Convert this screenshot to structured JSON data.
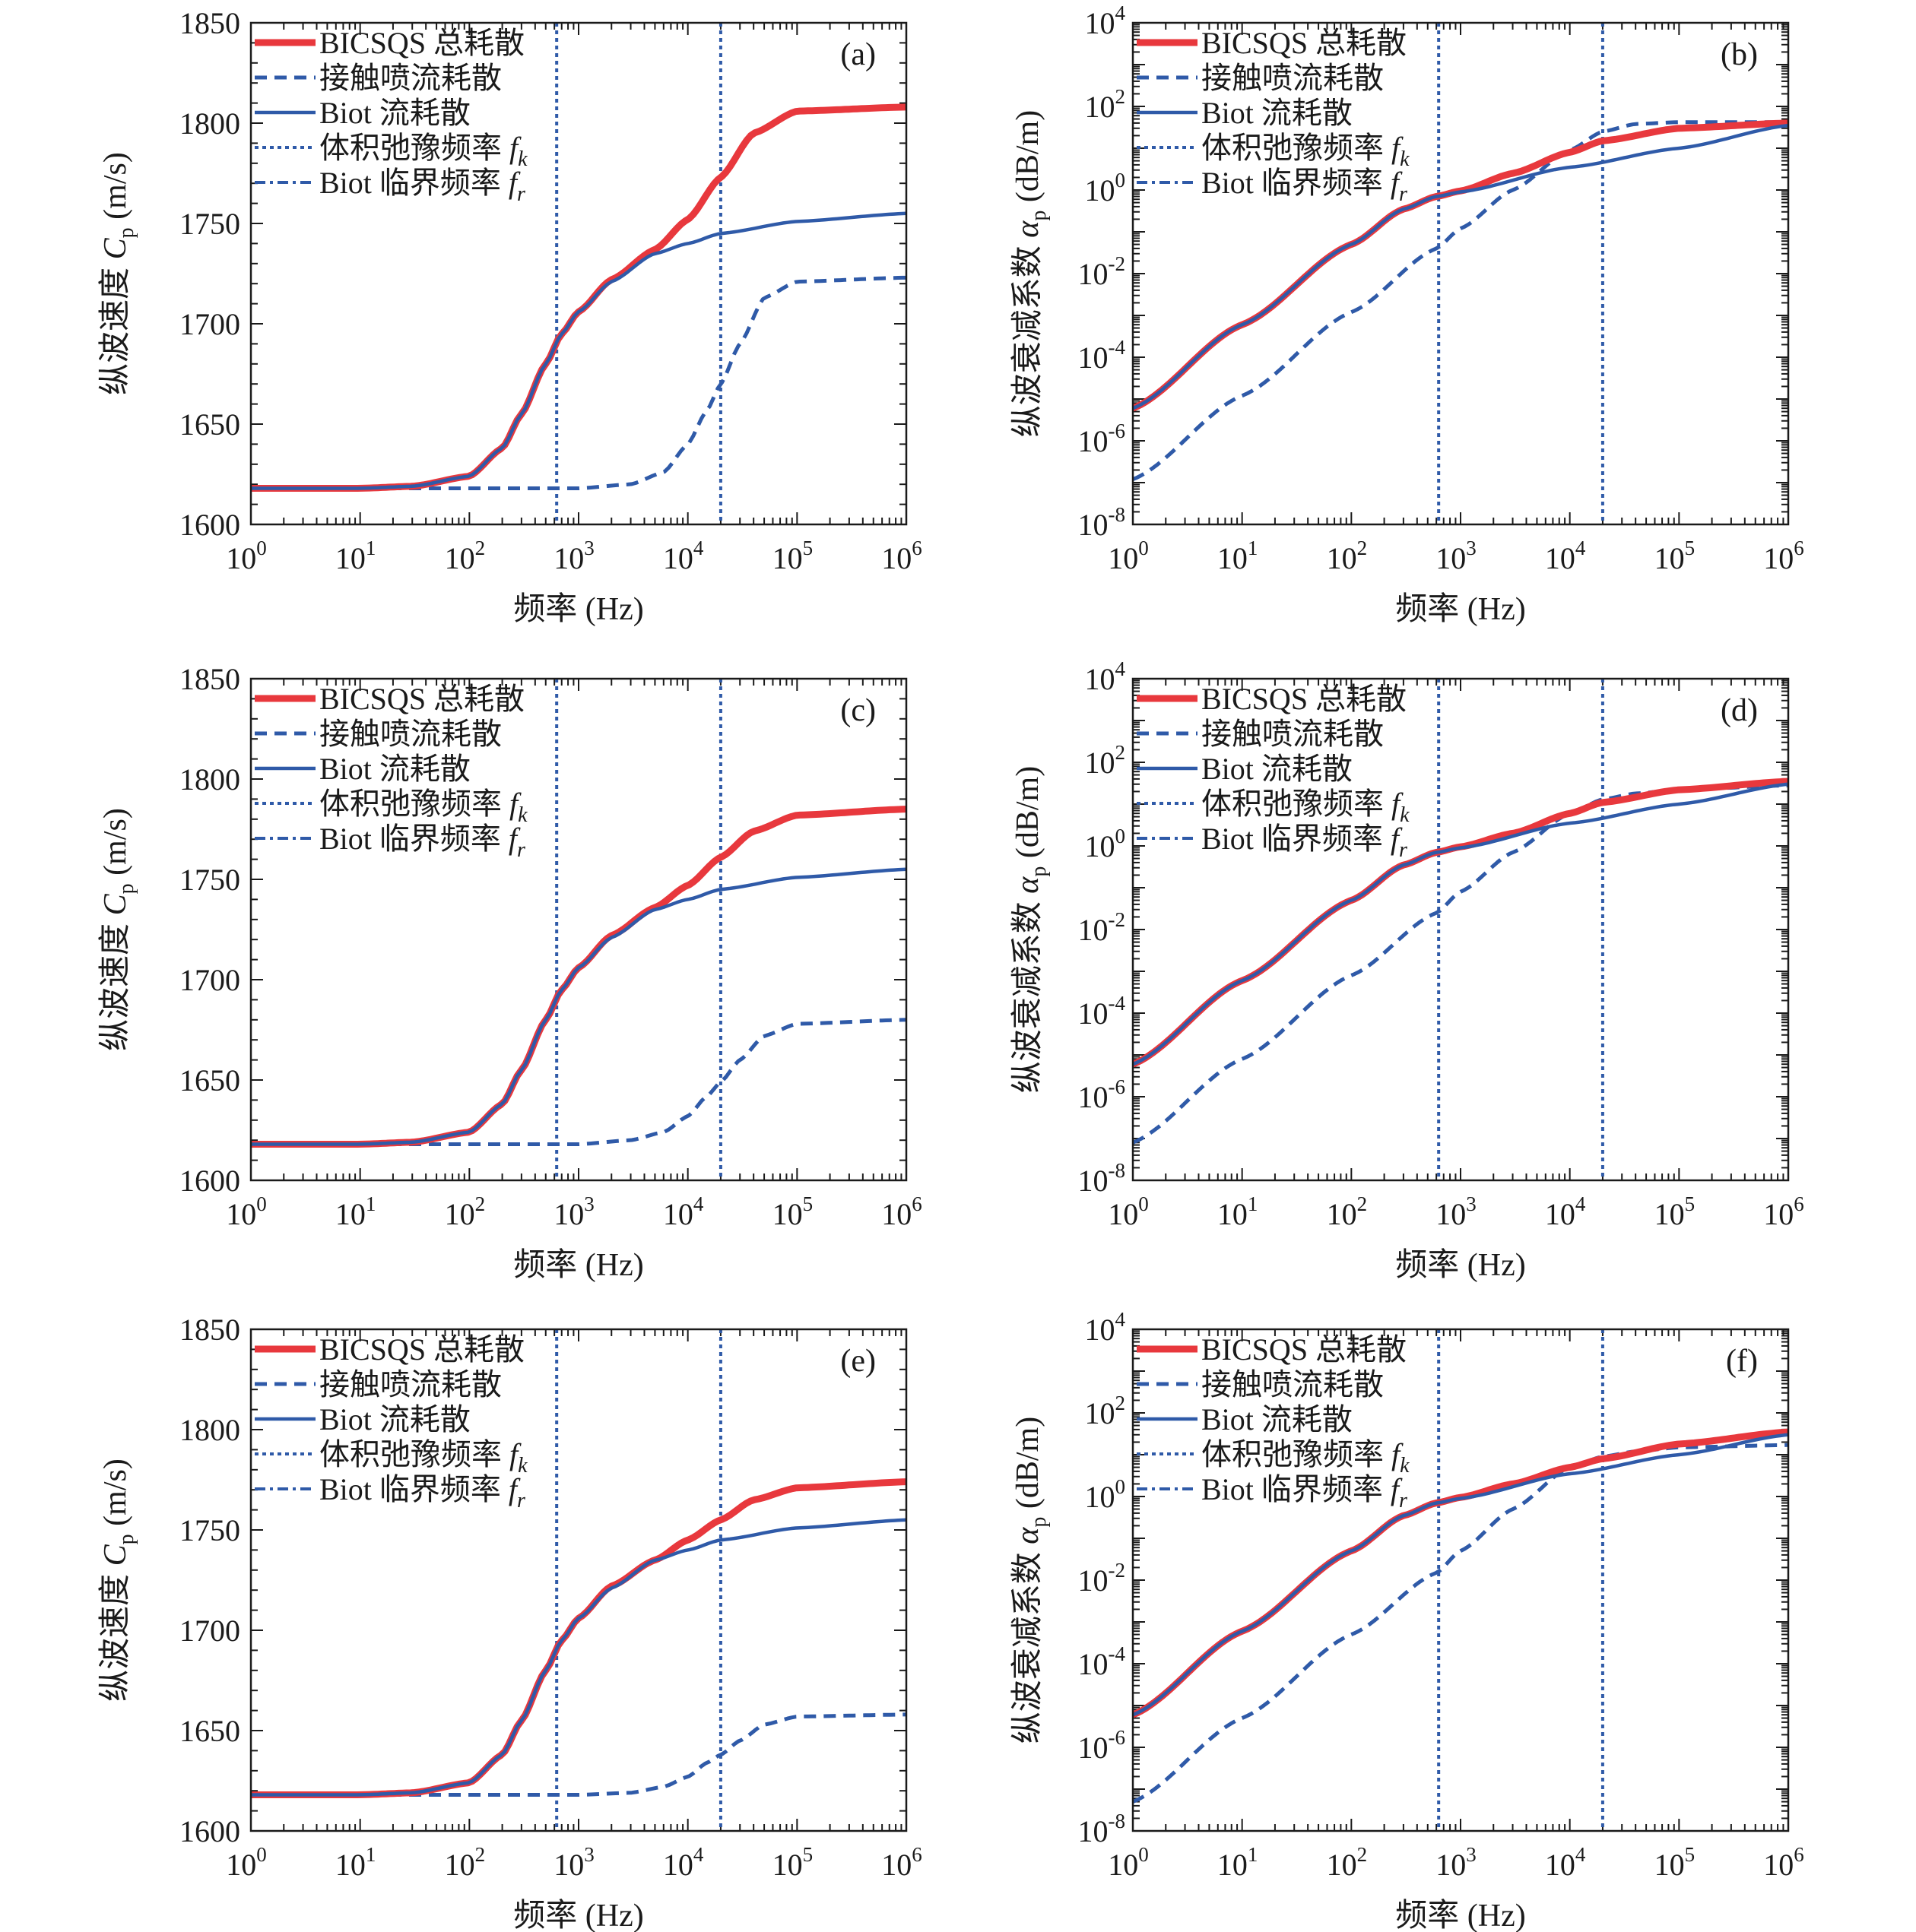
{
  "colors": {
    "total": "#e8383d",
    "contact": "#2f5aa8",
    "biot": "#2f5aa8",
    "fk_line": "#2f5aa8",
    "fr_line": "#2f5aa8",
    "axis": "#1a1a1a"
  },
  "legend": {
    "total": "BICSQS 总耗散",
    "contact": "接触喷流耗散",
    "biot": "Biot 流耗散",
    "fk_prefix": "体积弛豫频率 ",
    "fk_symbol": "f",
    "fk_sub": "k",
    "fr_prefix": "Biot 临界频率 ",
    "fr_symbol": "f",
    "fr_sub": "r"
  },
  "axes": {
    "xlabel": "频率 (Hz)",
    "vel_ylabel_prefix": "纵波速度 ",
    "vel_ylabel_symbol": "C",
    "vel_ylabel_sub": "p",
    "vel_ylabel_unit": " (m/s)",
    "att_ylabel_prefix": "纵波衰减系数 ",
    "att_ylabel_symbol": "α",
    "att_ylabel_sub": "p",
    "att_ylabel_unit": " (dB/m)",
    "x_tick_base": "10",
    "x_tick_exponents": [
      "0",
      "1",
      "2",
      "3",
      "4",
      "5",
      "6"
    ],
    "vel_ticks": [
      "1600",
      "1650",
      "1700",
      "1750",
      "1800",
      "1850"
    ],
    "att_tick_base": "10",
    "att_tick_exponents": [
      "-8",
      "-6",
      "-4",
      "-2",
      "0",
      "2",
      "4"
    ]
  },
  "chart_data": [
    {
      "panel": "(a)",
      "type": "line",
      "xscale": "log",
      "xlim": [
        1,
        1000000
      ],
      "ylim": [
        1600,
        1850
      ],
      "fk": 630,
      "fr": 20000,
      "series": [
        {
          "key": "total",
          "x": [
            1,
            10,
            30,
            100,
            200,
            300,
            500,
            700,
            1000,
            2000,
            5000,
            10000,
            20000,
            40000,
            100000,
            1000000
          ],
          "values": [
            1618,
            1618,
            1619,
            1624,
            1638,
            1655,
            1680,
            1695,
            1706,
            1722,
            1737,
            1752,
            1773,
            1795,
            1806,
            1808
          ]
        },
        {
          "key": "contact",
          "x": [
            1,
            100,
            1000,
            3000,
            6000,
            10000,
            15000,
            20000,
            30000,
            50000,
            100000,
            1000000
          ],
          "values": [
            1618,
            1618,
            1618,
            1620,
            1626,
            1640,
            1657,
            1670,
            1690,
            1713,
            1721,
            1723
          ]
        },
        {
          "key": "biot",
          "x": [
            1,
            10,
            30,
            100,
            200,
            300,
            500,
            700,
            1000,
            2000,
            5000,
            10000,
            20000,
            100000,
            1000000
          ],
          "values": [
            1618,
            1618,
            1619,
            1624,
            1638,
            1655,
            1680,
            1695,
            1706,
            1721,
            1735,
            1740,
            1745,
            1751,
            1755
          ]
        }
      ]
    },
    {
      "panel": "(b)",
      "type": "line",
      "xscale": "log",
      "yscale": "log",
      "xlim": [
        1,
        1000000
      ],
      "ylim": [
        1e-08,
        10000
      ],
      "fk": 630,
      "fr": 20000,
      "series": [
        {
          "key": "total",
          "x": [
            1,
            10,
            100,
            300,
            600,
            1000,
            3000,
            10000,
            20000,
            100000,
            1000000
          ],
          "values": [
            6e-06,
            0.0006,
            0.05,
            0.35,
            0.7,
            0.95,
            2.5,
            8,
            15,
            30,
            40
          ]
        },
        {
          "key": "contact",
          "x": [
            1,
            10,
            100,
            600,
            1000,
            3000,
            10000,
            20000,
            40000,
            100000,
            1000000
          ],
          "values": [
            1.2e-07,
            1.2e-05,
            0.0012,
            0.04,
            0.12,
            1.0,
            9,
            25,
            38,
            42,
            42
          ]
        },
        {
          "key": "biot",
          "x": [
            1,
            10,
            100,
            300,
            600,
            1000,
            10000,
            100000,
            1000000
          ],
          "values": [
            6e-06,
            0.0006,
            0.05,
            0.35,
            0.7,
            0.9,
            3.5,
            10,
            35
          ]
        }
      ]
    },
    {
      "panel": "(c)",
      "type": "line",
      "xscale": "log",
      "xlim": [
        1,
        1000000
      ],
      "ylim": [
        1600,
        1850
      ],
      "fk": 630,
      "fr": 20000,
      "series": [
        {
          "key": "total",
          "x": [
            1,
            10,
            30,
            100,
            200,
            300,
            500,
            700,
            1000,
            2000,
            5000,
            10000,
            20000,
            40000,
            100000,
            1000000
          ],
          "values": [
            1618,
            1618,
            1619,
            1624,
            1638,
            1655,
            1680,
            1695,
            1706,
            1722,
            1736,
            1747,
            1761,
            1774,
            1782,
            1785
          ]
        },
        {
          "key": "contact",
          "x": [
            1,
            100,
            1000,
            3000,
            6000,
            10000,
            15000,
            20000,
            30000,
            50000,
            100000,
            1000000
          ],
          "values": [
            1618,
            1618,
            1618,
            1620,
            1624,
            1632,
            1642,
            1649,
            1660,
            1672,
            1678,
            1680
          ]
        },
        {
          "key": "biot",
          "x": [
            1,
            10,
            30,
            100,
            200,
            300,
            500,
            700,
            1000,
            2000,
            5000,
            10000,
            20000,
            100000,
            1000000
          ],
          "values": [
            1618,
            1618,
            1619,
            1624,
            1638,
            1655,
            1680,
            1695,
            1706,
            1721,
            1735,
            1740,
            1745,
            1751,
            1755
          ]
        }
      ]
    },
    {
      "panel": "(d)",
      "type": "line",
      "xscale": "log",
      "yscale": "log",
      "xlim": [
        1,
        1000000
      ],
      "ylim": [
        1e-08,
        10000
      ],
      "fk": 630,
      "fr": 20000,
      "series": [
        {
          "key": "total",
          "x": [
            1,
            10,
            100,
            300,
            600,
            1000,
            3000,
            10000,
            20000,
            100000,
            1000000
          ],
          "values": [
            6e-06,
            0.0006,
            0.05,
            0.35,
            0.7,
            0.95,
            2,
            6,
            11,
            22,
            35
          ]
        },
        {
          "key": "contact",
          "x": [
            1,
            10,
            100,
            600,
            1000,
            3000,
            10000,
            20000,
            40000,
            100000,
            1000000
          ],
          "values": [
            8e-08,
            8e-06,
            0.0008,
            0.025,
            0.08,
            0.7,
            6,
            13,
            18,
            22,
            28
          ]
        },
        {
          "key": "biot",
          "x": [
            1,
            10,
            100,
            300,
            600,
            1000,
            10000,
            100000,
            1000000
          ],
          "values": [
            6e-06,
            0.0006,
            0.05,
            0.35,
            0.7,
            0.9,
            3.5,
            10,
            30
          ]
        }
      ]
    },
    {
      "panel": "(e)",
      "type": "line",
      "xscale": "log",
      "xlim": [
        1,
        1000000
      ],
      "ylim": [
        1600,
        1850
      ],
      "fk": 630,
      "fr": 20000,
      "series": [
        {
          "key": "total",
          "x": [
            1,
            10,
            30,
            100,
            200,
            300,
            500,
            700,
            1000,
            2000,
            5000,
            10000,
            20000,
            40000,
            100000,
            1000000
          ],
          "values": [
            1618,
            1618,
            1619,
            1624,
            1638,
            1655,
            1680,
            1695,
            1706,
            1722,
            1735,
            1745,
            1755,
            1765,
            1771,
            1774
          ]
        },
        {
          "key": "contact",
          "x": [
            1,
            100,
            1000,
            3000,
            6000,
            10000,
            15000,
            20000,
            30000,
            50000,
            100000,
            1000000
          ],
          "values": [
            1618,
            1618,
            1618,
            1619,
            1622,
            1627,
            1634,
            1638,
            1645,
            1653,
            1657,
            1658
          ]
        },
        {
          "key": "biot",
          "x": [
            1,
            10,
            30,
            100,
            200,
            300,
            500,
            700,
            1000,
            2000,
            5000,
            10000,
            20000,
            100000,
            1000000
          ],
          "values": [
            1618,
            1618,
            1619,
            1624,
            1638,
            1655,
            1680,
            1695,
            1706,
            1721,
            1735,
            1740,
            1745,
            1751,
            1755
          ]
        }
      ]
    },
    {
      "panel": "(f)",
      "type": "line",
      "xscale": "log",
      "yscale": "log",
      "xlim": [
        1,
        1000000
      ],
      "ylim": [
        1e-08,
        10000
      ],
      "fk": 630,
      "fr": 20000,
      "series": [
        {
          "key": "total",
          "x": [
            1,
            10,
            100,
            300,
            600,
            1000,
            3000,
            10000,
            20000,
            100000,
            1000000
          ],
          "values": [
            6e-06,
            0.0006,
            0.05,
            0.35,
            0.7,
            0.95,
            2,
            5,
            8,
            18,
            35
          ]
        },
        {
          "key": "contact",
          "x": [
            1,
            10,
            100,
            600,
            1000,
            3000,
            10000,
            20000,
            40000,
            100000,
            1000000
          ],
          "values": [
            5e-08,
            5e-06,
            0.0005,
            0.015,
            0.05,
            0.5,
            5,
            9,
            12,
            15,
            17
          ]
        },
        {
          "key": "biot",
          "x": [
            1,
            10,
            100,
            300,
            600,
            1000,
            10000,
            100000,
            1000000
          ],
          "values": [
            6e-06,
            0.0006,
            0.05,
            0.35,
            0.7,
            0.9,
            3.5,
            10,
            30
          ]
        }
      ]
    }
  ]
}
